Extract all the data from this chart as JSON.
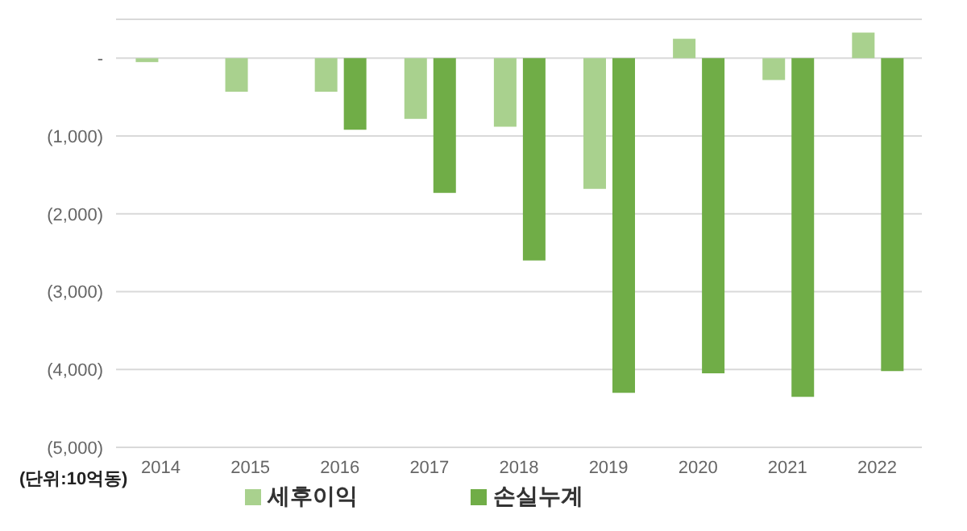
{
  "chart_data": {
    "type": "bar",
    "categories": [
      "2014",
      "2015",
      "2016",
      "2017",
      "2018",
      "2019",
      "2020",
      "2021",
      "2022"
    ],
    "series": [
      {
        "name": "세후이익",
        "color": "#a9d18e",
        "values": [
          -50,
          -430,
          -430,
          -780,
          -880,
          -1680,
          250,
          -280,
          330
        ]
      },
      {
        "name": "손실누계",
        "color": "#70ad47",
        "values": [
          null,
          null,
          -920,
          -1730,
          -2600,
          -4300,
          -4050,
          -4350,
          -4020
        ]
      }
    ],
    "ylim": [
      -5000,
      500
    ],
    "yticks": [
      {
        "value": 0,
        "label": "-"
      },
      {
        "value": -1000,
        "label": "(1,000)"
      },
      {
        "value": -2000,
        "label": "(2,000)"
      },
      {
        "value": -3000,
        "label": "(3,000)"
      },
      {
        "value": -4000,
        "label": "(4,000)"
      },
      {
        "value": -5000,
        "label": "(5,000)"
      }
    ],
    "grid": "y",
    "legend": "bottom",
    "annotations": [
      "(단위:10억동)"
    ]
  }
}
